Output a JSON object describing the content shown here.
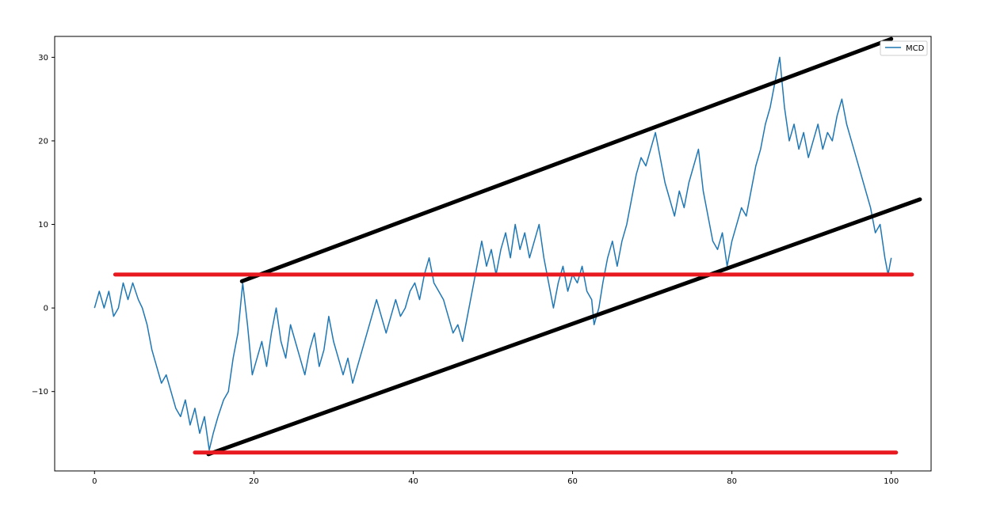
{
  "chart_data": {
    "type": "line",
    "title": "",
    "xlabel": "",
    "ylabel": "",
    "xlim": [
      -5,
      105
    ],
    "ylim": [
      -19.5,
      32.5
    ],
    "x_ticks": [
      0,
      20,
      40,
      60,
      80,
      100
    ],
    "x_tick_labels": [
      "0",
      "20",
      "40",
      "60",
      "80",
      "100"
    ],
    "y_ticks": [
      -10,
      0,
      10,
      20,
      30
    ],
    "y_tick_labels": [
      "−10",
      "0",
      "10",
      "20",
      "30"
    ],
    "grid": false,
    "legend": {
      "position": "top-right",
      "entries": [
        "MCD"
      ]
    },
    "series": [
      {
        "name": "MCD",
        "color": "#1f77b4",
        "points": [
          [
            0,
            0
          ],
          [
            0.6,
            2
          ],
          [
            1.2,
            0
          ],
          [
            1.8,
            2
          ],
          [
            2.4,
            -1
          ],
          [
            3,
            0
          ],
          [
            3.6,
            3
          ],
          [
            4.2,
            1
          ],
          [
            4.8,
            3
          ],
          [
            5.5,
            1
          ],
          [
            6,
            0
          ],
          [
            6.6,
            -2
          ],
          [
            7.2,
            -5
          ],
          [
            7.8,
            -7
          ],
          [
            8.4,
            -9
          ],
          [
            9,
            -8
          ],
          [
            9.6,
            -10
          ],
          [
            10.2,
            -12
          ],
          [
            10.8,
            -13
          ],
          [
            11.4,
            -11
          ],
          [
            12,
            -14
          ],
          [
            12.6,
            -12
          ],
          [
            13.2,
            -15
          ],
          [
            13.8,
            -13
          ],
          [
            14.4,
            -17
          ],
          [
            14.9,
            -15
          ],
          [
            15.5,
            -13
          ],
          [
            16.2,
            -11
          ],
          [
            16.8,
            -10
          ],
          [
            17.4,
            -6
          ],
          [
            18,
            -3
          ],
          [
            18.6,
            3
          ],
          [
            19.2,
            -2
          ],
          [
            19.8,
            -8
          ],
          [
            20.4,
            -6
          ],
          [
            21,
            -4
          ],
          [
            21.6,
            -7
          ],
          [
            22.2,
            -3
          ],
          [
            22.8,
            0
          ],
          [
            23.4,
            -4
          ],
          [
            24,
            -6
          ],
          [
            24.6,
            -2
          ],
          [
            25.2,
            -4
          ],
          [
            25.8,
            -6
          ],
          [
            26.4,
            -8
          ],
          [
            27,
            -5
          ],
          [
            27.6,
            -3
          ],
          [
            28.2,
            -7
          ],
          [
            28.8,
            -5
          ],
          [
            29.4,
            -1
          ],
          [
            30,
            -4
          ],
          [
            30.6,
            -6
          ],
          [
            31.2,
            -8
          ],
          [
            31.8,
            -6
          ],
          [
            32.4,
            -9
          ],
          [
            33,
            -7
          ],
          [
            33.6,
            -5
          ],
          [
            34.2,
            -3
          ],
          [
            34.8,
            -1
          ],
          [
            35.4,
            1
          ],
          [
            36,
            -1
          ],
          [
            36.6,
            -3
          ],
          [
            37.2,
            -1
          ],
          [
            37.8,
            1
          ],
          [
            38.4,
            -1
          ],
          [
            39,
            0
          ],
          [
            39.6,
            2
          ],
          [
            40.2,
            3
          ],
          [
            40.8,
            1
          ],
          [
            41.4,
            4
          ],
          [
            42,
            6
          ],
          [
            42.6,
            3
          ],
          [
            43.2,
            2
          ],
          [
            43.8,
            1
          ],
          [
            44.4,
            -1
          ],
          [
            45,
            -3
          ],
          [
            45.6,
            -2
          ],
          [
            46.2,
            -4
          ],
          [
            46.8,
            -1
          ],
          [
            47.4,
            2
          ],
          [
            48,
            5
          ],
          [
            48.6,
            8
          ],
          [
            49.2,
            5
          ],
          [
            49.8,
            7
          ],
          [
            50.4,
            4
          ],
          [
            51,
            7
          ],
          [
            51.6,
            9
          ],
          [
            52.2,
            6
          ],
          [
            52.8,
            10
          ],
          [
            53.4,
            7
          ],
          [
            54,
            9
          ],
          [
            54.6,
            6
          ],
          [
            55.2,
            8
          ],
          [
            55.8,
            10
          ],
          [
            56.4,
            6
          ],
          [
            57,
            3
          ],
          [
            57.6,
            0
          ],
          [
            58.2,
            3
          ],
          [
            58.8,
            5
          ],
          [
            59.4,
            2
          ],
          [
            60,
            4
          ],
          [
            60.6,
            3
          ],
          [
            61.2,
            5
          ],
          [
            61.8,
            2
          ],
          [
            62.4,
            1
          ],
          [
            62.7,
            -2
          ],
          [
            63.3,
            0
          ],
          [
            63.8,
            3
          ],
          [
            64.4,
            6
          ],
          [
            65,
            8
          ],
          [
            65.6,
            5
          ],
          [
            66.2,
            8
          ],
          [
            66.8,
            10
          ],
          [
            67.4,
            13
          ],
          [
            68,
            16
          ],
          [
            68.6,
            18
          ],
          [
            69.2,
            17
          ],
          [
            69.8,
            19
          ],
          [
            70.4,
            21
          ],
          [
            71,
            18
          ],
          [
            71.6,
            15
          ],
          [
            72.2,
            13
          ],
          [
            72.8,
            11
          ],
          [
            73.4,
            14
          ],
          [
            74,
            12
          ],
          [
            74.6,
            15
          ],
          [
            75.2,
            17
          ],
          [
            75.8,
            19
          ],
          [
            76.4,
            14
          ],
          [
            77,
            11
          ],
          [
            77.6,
            8
          ],
          [
            78.2,
            7
          ],
          [
            78.8,
            9
          ],
          [
            79.4,
            5
          ],
          [
            80,
            8
          ],
          [
            80.6,
            10
          ],
          [
            81.2,
            12
          ],
          [
            81.8,
            11
          ],
          [
            82.4,
            14
          ],
          [
            83,
            17
          ],
          [
            83.6,
            19
          ],
          [
            84.2,
            22
          ],
          [
            84.8,
            24
          ],
          [
            85.4,
            27
          ],
          [
            86,
            30
          ],
          [
            86.6,
            24
          ],
          [
            87.2,
            20
          ],
          [
            87.8,
            22
          ],
          [
            88.4,
            19
          ],
          [
            89,
            21
          ],
          [
            89.6,
            18
          ],
          [
            90.2,
            20
          ],
          [
            90.8,
            22
          ],
          [
            91.4,
            19
          ],
          [
            92,
            21
          ],
          [
            92.6,
            20
          ],
          [
            93.2,
            23
          ],
          [
            93.8,
            25
          ],
          [
            94.4,
            22
          ],
          [
            95,
            20
          ],
          [
            95.6,
            18
          ],
          [
            96.2,
            16
          ],
          [
            96.8,
            14
          ],
          [
            97.4,
            12
          ],
          [
            98,
            9
          ],
          [
            98.6,
            10
          ],
          [
            99.2,
            6
          ],
          [
            99.6,
            4
          ],
          [
            100,
            6
          ]
        ]
      }
    ],
    "annotations": [
      {
        "type": "line",
        "color": "#000000",
        "from": [
          18.5,
          3.2
        ],
        "to": [
          100,
          32.2
        ]
      },
      {
        "type": "line",
        "color": "#000000",
        "from": [
          14.3,
          -17.5
        ],
        "to": [
          103.6,
          13
        ]
      },
      {
        "type": "hline",
        "color": "#e8191f",
        "y": 4,
        "x_from": 2.6,
        "x_to": 102.6
      },
      {
        "type": "hline",
        "color": "#e8191f",
        "y": -17.3,
        "x_from": 12.6,
        "x_to": 100.6
      }
    ]
  }
}
